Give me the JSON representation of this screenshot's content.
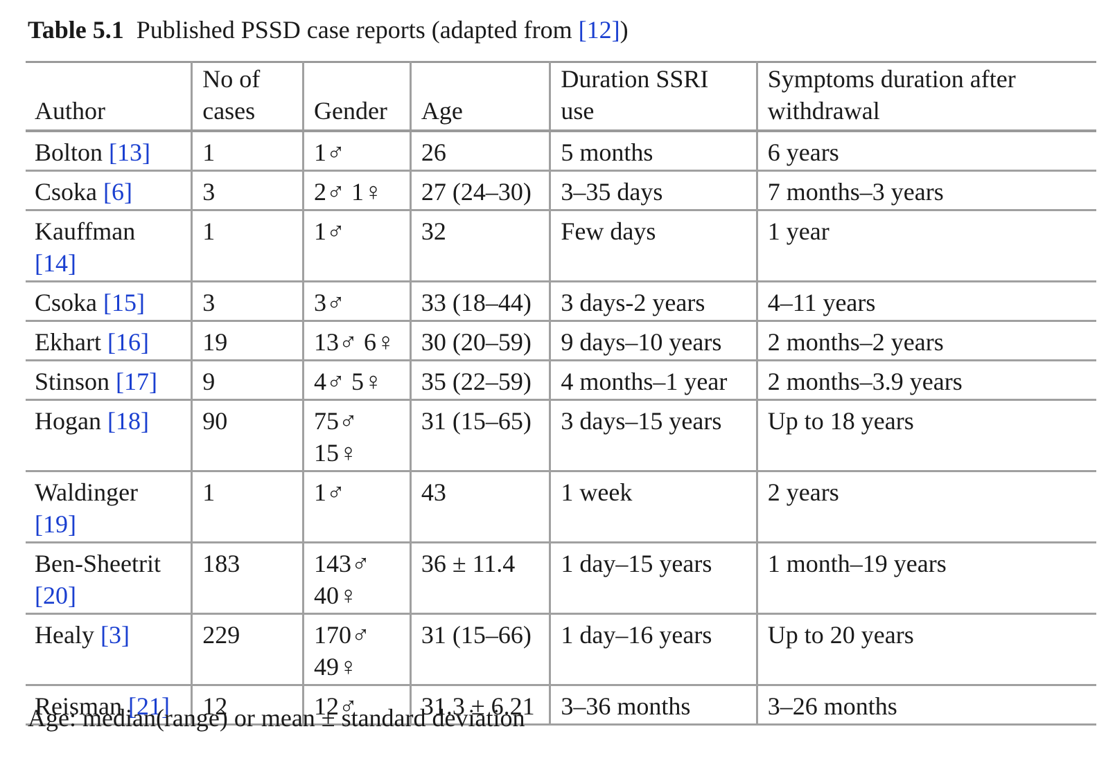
{
  "caption": {
    "label": "Table 5.1",
    "text": "Published PSSD case reports (adapted from ",
    "ref": "[12]",
    "close": ")"
  },
  "headers": [
    "Author",
    "No of cases",
    "Gender",
    "Age",
    "Duration SSRI use",
    "Symptoms duration after withdrawal"
  ],
  "rows": [
    {
      "author": "Bolton",
      "ref": "[13]",
      "cases": "1",
      "gender": "1♂",
      "age": "26",
      "duration": "5 months",
      "symptoms": "6 years"
    },
    {
      "author": "Csoka",
      "ref": "[6]",
      "cases": "3",
      "gender": "2♂ 1♀",
      "age": "27 (24–30)",
      "duration": "3–35 days",
      "symptoms": "7 months–3 years"
    },
    {
      "author": "Kauffman",
      "ref": "[14]",
      "cases": "1",
      "gender": "1♂",
      "age": "32",
      "duration": "Few days",
      "symptoms": "1 year"
    },
    {
      "author": "Csoka",
      "ref": "[15]",
      "cases": "3",
      "gender": "3♂",
      "age": "33 (18–44)",
      "duration": "3 days-2 years",
      "symptoms": "4–11 years"
    },
    {
      "author": "Ekhart",
      "ref": "[16]",
      "cases": "19",
      "gender": "13♂ 6♀",
      "age": "30 (20–59)",
      "duration": "9 days–10 years",
      "symptoms": "2 months–2 years"
    },
    {
      "author": "Stinson",
      "ref": "[17]",
      "cases": "9",
      "gender": "4♂ 5♀",
      "age": "35 (22–59)",
      "duration": "4 months–1 year",
      "symptoms": "2 months–3.9 years"
    },
    {
      "author": "Hogan",
      "ref": "[18]",
      "cases": "90",
      "gender": "75♂ 15♀",
      "age": "31 (15–65)",
      "duration": "3 days–15 years",
      "symptoms": "Up to 18 years"
    },
    {
      "author": "Waldinger",
      "ref": "[19]",
      "cases": "1",
      "gender": "1♂",
      "age": "43",
      "duration": "1 week",
      "symptoms": "2 years"
    },
    {
      "author": "Ben-Sheetrit",
      "ref": "[20]",
      "cases": "183",
      "gender": "143♂ 40♀",
      "age": "36 ± 11.4",
      "duration": "1 day–15 years",
      "symptoms": "1 month–19 years"
    },
    {
      "author": "Healy",
      "ref": "[3]",
      "cases": "229",
      "gender": "170♂ 49♀",
      "age": "31 (15–66)",
      "duration": "1 day–16 years",
      "symptoms": "Up to 20 years"
    },
    {
      "author": "Reisman",
      "ref": "[21]",
      "cases": "12",
      "gender": "12♂",
      "age": "31.3 ± 6.21",
      "duration": "3–36 months",
      "symptoms": "3–26 months"
    }
  ],
  "footnote": "Age: median(range) or mean ± standard deviation",
  "colors": {
    "reference_link": "#1a3fd0",
    "rule": "#a0a0a0"
  }
}
